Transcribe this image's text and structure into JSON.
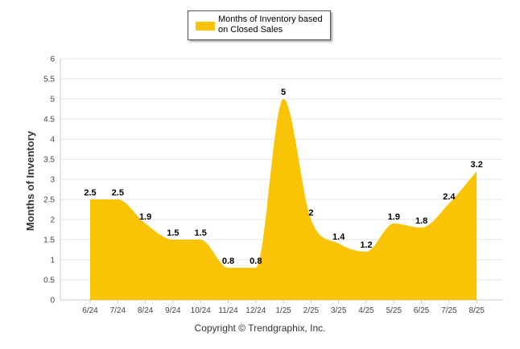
{
  "chart_data": {
    "type": "area",
    "categories": [
      "6/24",
      "7/24",
      "8/24",
      "9/24",
      "10/24",
      "11/24",
      "12/24",
      "1/25",
      "2/25",
      "3/25",
      "4/25",
      "5/25",
      "6/25",
      "7/25",
      "8/25"
    ],
    "series": [
      {
        "name": "Months of Inventory based on Closed Sales",
        "values": [
          2.5,
          2.5,
          1.9,
          1.5,
          1.5,
          0.8,
          0.8,
          5,
          2,
          1.4,
          1.2,
          1.9,
          1.8,
          2.4,
          3.2
        ],
        "color": "#F9C306"
      }
    ],
    "ylabel": "Months of Inventory",
    "xlabel": "",
    "ylim": [
      0,
      6
    ],
    "yticks": [
      "0",
      "0.5",
      "1",
      "1.5",
      "2",
      "2.5",
      "3",
      "3.5",
      "4",
      "4.5",
      "5",
      "5.5",
      "6"
    ],
    "grid": true,
    "legend": "top-center"
  },
  "legend": {
    "label": "Months of Inventory based on Closed Sales"
  },
  "footer": {
    "copyright": "Copyright © Trendgraphix, Inc."
  },
  "colors": {
    "fill": "#F9C306",
    "grid": "#E6E6E6"
  }
}
